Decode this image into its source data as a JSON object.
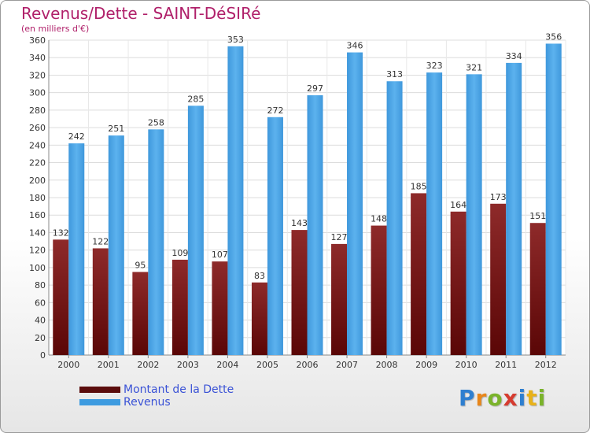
{
  "chart_data": {
    "type": "bar",
    "title": "Revenus/Dette - SAINT-DéSIRé",
    "subtitle": "(en milliers d'€)",
    "categories": [
      "2000",
      "2001",
      "2002",
      "2003",
      "2004",
      "2005",
      "2006",
      "2007",
      "2008",
      "2009",
      "2010",
      "2011",
      "2012"
    ],
    "series": [
      {
        "name": "Montant de la Dette",
        "color": "#7a1818",
        "values": [
          132,
          122,
          95,
          109,
          107,
          83,
          143,
          127,
          148,
          185,
          164,
          173,
          151
        ]
      },
      {
        "name": "Revenus",
        "color": "#4da6e8",
        "values": [
          242,
          251,
          258,
          285,
          353,
          272,
          297,
          346,
          313,
          323,
          321,
          334,
          356
        ]
      }
    ],
    "ylim": [
      0,
      360
    ],
    "ytick_step": 20,
    "grid": true,
    "legend_position": "bottom-left"
  },
  "logo_text": "Proxiti"
}
